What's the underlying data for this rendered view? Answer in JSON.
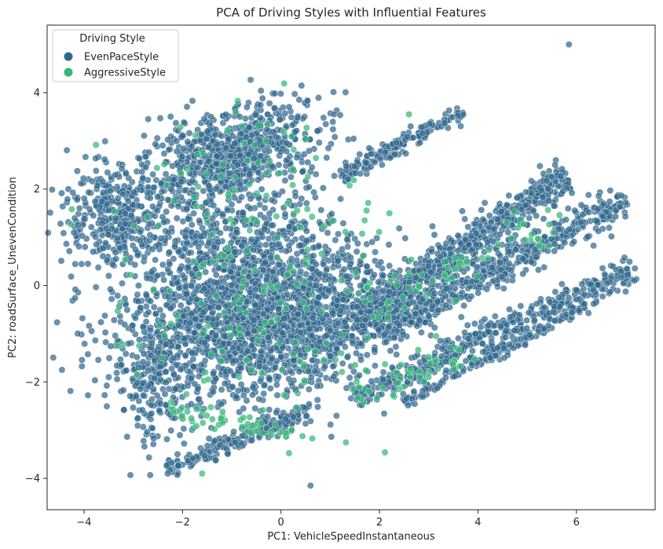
{
  "chart_data": {
    "type": "scatter",
    "title": "PCA of Driving Styles with Influential Features",
    "xlabel": "PC1: VehicleSpeedInstantaneous",
    "ylabel": "PC2: roadSurface_UnevenCondition",
    "xlim": [
      -4.75,
      7.6
    ],
    "ylim": [
      -4.65,
      5.4
    ],
    "xticks": [
      -4,
      -2,
      0,
      2,
      4,
      6
    ],
    "yticks": [
      -4,
      -2,
      0,
      2,
      4
    ],
    "xtick_labels": [
      "−4",
      "−2",
      "0",
      "2",
      "4",
      "6"
    ],
    "ytick_labels": [
      "−4",
      "−2",
      "0",
      "2",
      "4"
    ],
    "grid": false,
    "legend": {
      "title": "Driving Style",
      "placement": "top-left",
      "entries": [
        "EvenPaceStyle",
        "AggressiveStyle"
      ]
    },
    "series": [
      {
        "name": "EvenPaceStyle",
        "color": "#31688e",
        "clusters": [
          {
            "kind": "blob",
            "center": [
              -1.0,
              2.7
            ],
            "spread": [
              0.9,
              0.45
            ],
            "rotation": 0.35,
            "count": 700
          },
          {
            "kind": "blob",
            "center": [
              -3.3,
              1.5
            ],
            "spread": [
              0.55,
              0.55
            ],
            "rotation": 0.3,
            "count": 350
          },
          {
            "kind": "blob",
            "center": [
              -0.8,
              0.6
            ],
            "spread": [
              1.1,
              0.7
            ],
            "rotation": 0.1,
            "count": 650
          },
          {
            "kind": "blob",
            "center": [
              -1.0,
              -1.0
            ],
            "spread": [
              1.3,
              0.8
            ],
            "rotation": 0.05,
            "count": 1100
          },
          {
            "kind": "blob",
            "center": [
              0.8,
              -0.6
            ],
            "spread": [
              1.0,
              0.6
            ],
            "rotation": 0.2,
            "count": 600
          },
          {
            "kind": "line",
            "from": [
              1.2,
              2.3
            ],
            "to": [
              3.7,
              3.6
            ],
            "width": 0.18,
            "count": 160
          },
          {
            "kind": "line",
            "from": [
              1.5,
              -0.8
            ],
            "to": [
              5.8,
              2.3
            ],
            "width": 0.35,
            "count": 650
          },
          {
            "kind": "line",
            "from": [
              2.0,
              -1.0
            ],
            "to": [
              7.0,
              1.8
            ],
            "width": 0.35,
            "count": 500
          },
          {
            "kind": "line",
            "from": [
              1.5,
              -2.3
            ],
            "to": [
              7.2,
              0.35
            ],
            "width": 0.3,
            "count": 420
          },
          {
            "kind": "line",
            "from": [
              2.5,
              -2.4
            ],
            "to": [
              6.2,
              -0.4
            ],
            "width": 0.15,
            "count": 180
          },
          {
            "kind": "line",
            "from": [
              -2.3,
              -3.8
            ],
            "to": [
              0.6,
              -2.6
            ],
            "width": 0.2,
            "count": 200
          },
          {
            "kind": "blob",
            "center": [
              -2.6,
              -2.0
            ],
            "spread": [
              0.35,
              0.7
            ],
            "rotation": 0.0,
            "count": 150
          }
        ],
        "outliers": [
          [
            5.85,
            5.0
          ],
          [
            0.6,
            -4.15
          ],
          [
            -2.3,
            -3.9
          ]
        ]
      },
      {
        "name": "AggressiveStyle",
        "color": "#35b779",
        "clusters": [
          {
            "kind": "blob",
            "center": [
              -0.4,
              -0.3
            ],
            "spread": [
              1.6,
              1.4
            ],
            "rotation": 0.0,
            "count": 170
          },
          {
            "kind": "blob",
            "center": [
              -1.3,
              2.4
            ],
            "spread": [
              0.9,
              0.6
            ],
            "rotation": 0.3,
            "count": 40
          },
          {
            "kind": "line",
            "from": [
              1.5,
              -0.6
            ],
            "to": [
              5.8,
              1.5
            ],
            "width": 0.4,
            "count": 60
          },
          {
            "kind": "line",
            "from": [
              1.5,
              -2.3
            ],
            "to": [
              4.0,
              -1.3
            ],
            "width": 0.3,
            "count": 40
          },
          {
            "kind": "line",
            "from": [
              -2.3,
              -2.6
            ],
            "to": [
              0.3,
              -3.1
            ],
            "width": 0.25,
            "count": 45
          }
        ],
        "outliers": [
          [
            2.6,
            3.55
          ],
          [
            1.7,
            1.35
          ],
          [
            -1.6,
            -3.9
          ]
        ]
      }
    ]
  }
}
